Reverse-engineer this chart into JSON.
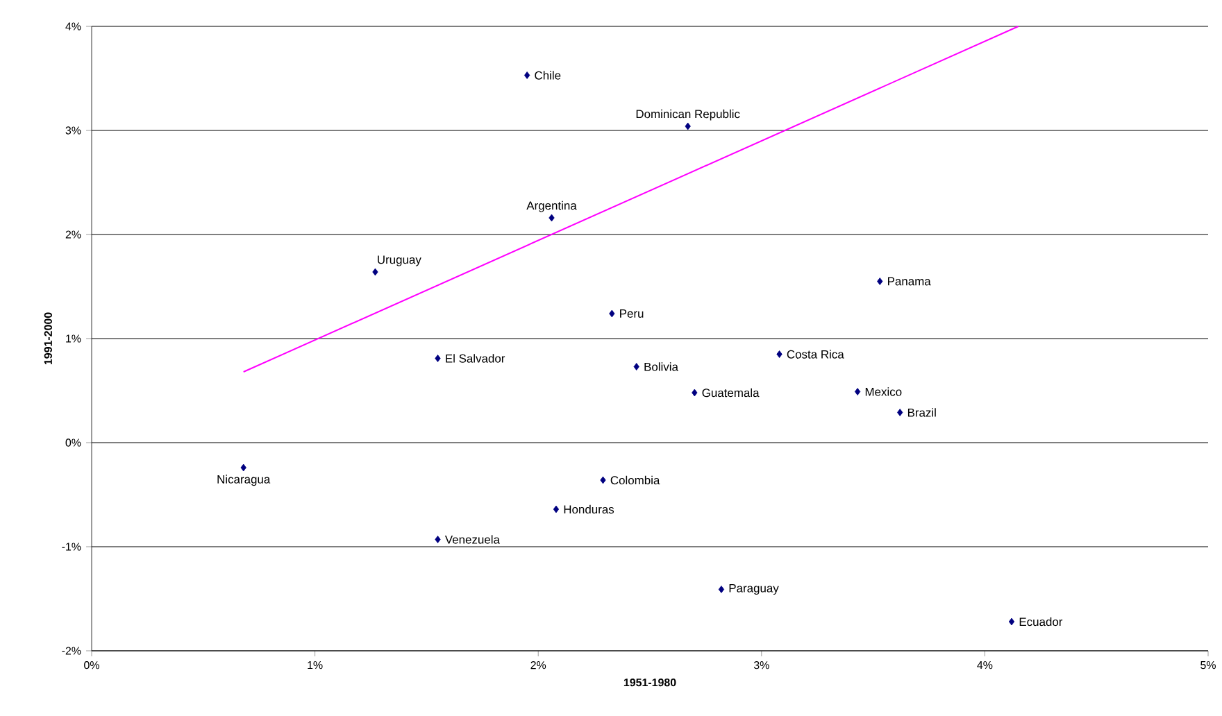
{
  "chart_data": {
    "type": "scatter",
    "xlabel": "1951-1980",
    "ylabel": "1991-2000",
    "xlim": [
      0,
      5
    ],
    "ylim": [
      -2,
      4
    ],
    "xticks": [
      {
        "value": 0,
        "label": "0%"
      },
      {
        "value": 1,
        "label": "1%"
      },
      {
        "value": 2,
        "label": "2%"
      },
      {
        "value": 3,
        "label": "3%"
      },
      {
        "value": 4,
        "label": "4%"
      },
      {
        "value": 5,
        "label": "5%"
      }
    ],
    "yticks": [
      {
        "value": -2,
        "label": "-2%"
      },
      {
        "value": -1,
        "label": "-1%"
      },
      {
        "value": 0,
        "label": "0%"
      },
      {
        "value": 1,
        "label": "1%"
      },
      {
        "value": 2,
        "label": "2%"
      },
      {
        "value": 3,
        "label": "3%"
      },
      {
        "value": 4,
        "label": "4%"
      }
    ],
    "grid": "y",
    "series": [
      {
        "marker": "diamond",
        "color": "#000080",
        "x": [
          1.95,
          2.67,
          2.06,
          1.27,
          2.33,
          3.53,
          1.55,
          2.44,
          3.08,
          2.7,
          3.43,
          3.62,
          0.68,
          2.29,
          2.08,
          1.55,
          2.82,
          4.12
        ],
        "values": [
          3.53,
          3.04,
          2.16,
          1.64,
          1.24,
          1.55,
          0.81,
          0.73,
          0.85,
          0.48,
          0.49,
          0.29,
          -0.24,
          -0.36,
          -0.64,
          -0.93,
          -1.41,
          -1.72
        ]
      },
      {
        "type": "line",
        "marker": "none",
        "color": "#ff00ff",
        "x": [
          0.68,
          4.15
        ],
        "values": [
          0.68,
          4.0
        ]
      }
    ],
    "annotations": [
      {
        "text": "Chile",
        "x": 1.95,
        "y": 3.53
      },
      {
        "text": "Dominican Republic",
        "x": 2.67,
        "y": 3.04
      },
      {
        "text": "Argentina",
        "x": 2.06,
        "y": 2.16
      },
      {
        "text": "Uruguay",
        "x": 1.27,
        "y": 1.64
      },
      {
        "text": "Peru",
        "x": 2.33,
        "y": 1.24
      },
      {
        "text": "Panama",
        "x": 3.53,
        "y": 1.55
      },
      {
        "text": "El Salvador",
        "x": 1.55,
        "y": 0.81
      },
      {
        "text": "Bolivia",
        "x": 2.44,
        "y": 0.73
      },
      {
        "text": "Costa Rica",
        "x": 3.08,
        "y": 0.85
      },
      {
        "text": "Guatemala",
        "x": 2.7,
        "y": 0.48
      },
      {
        "text": "Mexico",
        "x": 3.43,
        "y": 0.49
      },
      {
        "text": "Brazil",
        "x": 3.62,
        "y": 0.29
      },
      {
        "text": "Nicaragua",
        "x": 0.68,
        "y": -0.24
      },
      {
        "text": "Colombia",
        "x": 2.29,
        "y": -0.36
      },
      {
        "text": "Honduras",
        "x": 2.08,
        "y": -0.64
      },
      {
        "text": "Venezuela",
        "x": 1.55,
        "y": -0.93
      },
      {
        "text": "Paraguay",
        "x": 2.82,
        "y": -1.41
      },
      {
        "text": "Ecuador",
        "x": 4.12,
        "y": -1.72
      }
    ]
  }
}
